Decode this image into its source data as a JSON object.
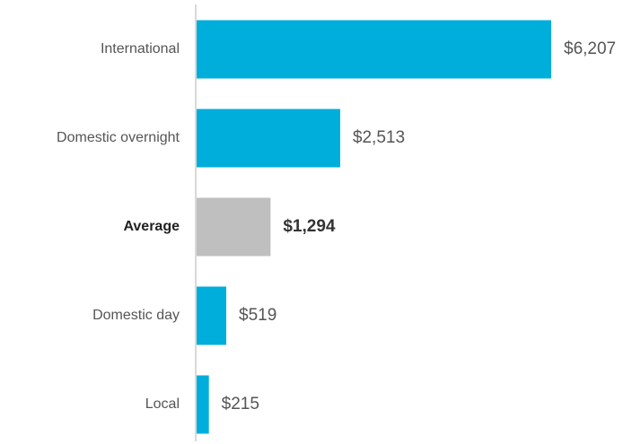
{
  "chart_data": {
    "type": "bar",
    "orientation": "horizontal",
    "categories": [
      "International",
      "Domestic overnight",
      "Average",
      "Domestic day",
      "Local"
    ],
    "values": [
      6207,
      2513,
      1294,
      519,
      215
    ],
    "value_labels": [
      "$6,207",
      "$2,513",
      "$1,294",
      "$519",
      "$215"
    ],
    "colors": [
      "#00aedb",
      "#00aedb",
      "#bfbfbf",
      "#00aedb",
      "#00aedb"
    ],
    "bold": [
      false,
      false,
      true,
      false,
      false
    ]
  }
}
